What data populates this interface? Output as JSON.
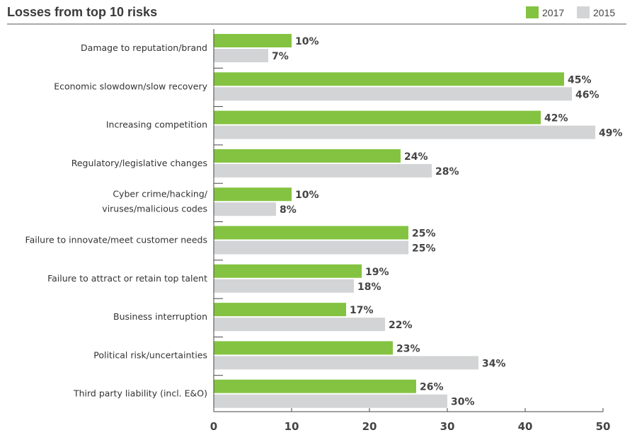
{
  "chart_data": {
    "type": "bar",
    "orientation": "horizontal",
    "title": "Losses from top 10 risks",
    "categories": [
      [
        "Damage to reputation/brand"
      ],
      [
        "Economic slowdown/slow recovery"
      ],
      [
        "Increasing competition"
      ],
      [
        "Regulatory/legislative changes"
      ],
      [
        "Cyber crime/hacking/",
        "viruses/malicious codes"
      ],
      [
        "Failure to innovate/meet customer needs"
      ],
      [
        "Failure to attract or retain top talent"
      ],
      [
        "Business interruption"
      ],
      [
        "Political risk/uncertainties"
      ],
      [
        "Third party liability (incl. E&O)"
      ]
    ],
    "series": [
      {
        "name": "2017",
        "color": "#84c341",
        "values": [
          10,
          45,
          42,
          24,
          10,
          25,
          19,
          17,
          23,
          26
        ]
      },
      {
        "name": "2015",
        "color": "#d3d4d5",
        "values": [
          7,
          46,
          49,
          28,
          8,
          25,
          18,
          22,
          34,
          30
        ]
      }
    ],
    "value_suffix": "%",
    "xlim": [
      0,
      50
    ],
    "xticks": [
      0,
      10,
      20,
      30,
      40,
      50
    ],
    "xlabel": "",
    "ylabel": "",
    "grid": false,
    "legend_position": "top-right"
  }
}
